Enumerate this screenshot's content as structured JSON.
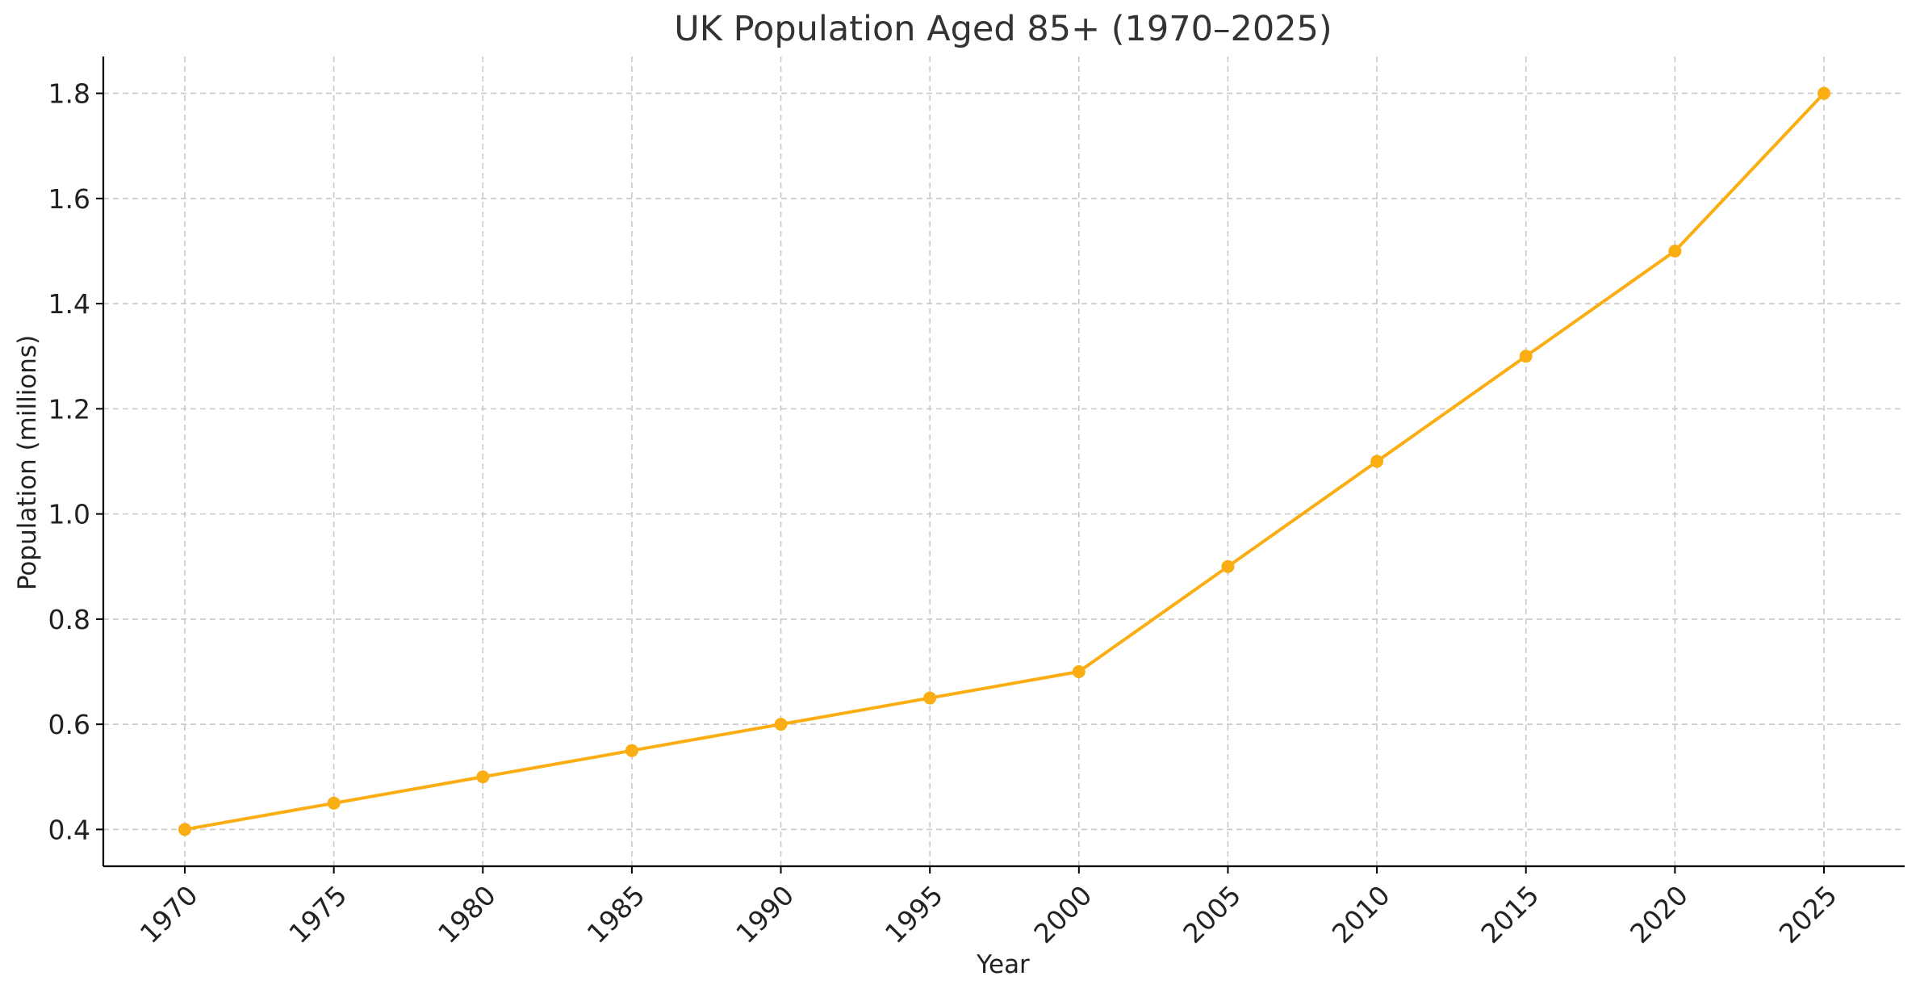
{
  "chart_data": {
    "type": "line",
    "title": "UK Population Aged 85+ (1970–2025)",
    "xlabel": "Year",
    "ylabel": "Population (millions)",
    "x": [
      1970,
      1975,
      1980,
      1985,
      1990,
      1995,
      2000,
      2005,
      2010,
      2015,
      2020,
      2025
    ],
    "x_tick_labels": [
      "1970",
      "1975",
      "1980",
      "1985",
      "1990",
      "1995",
      "2000",
      "2005",
      "2010",
      "2015",
      "2020",
      "2025"
    ],
    "y_ticks": [
      0.4,
      0.6,
      0.8,
      1.0,
      1.2,
      1.4,
      1.6,
      1.8
    ],
    "y_tick_labels": [
      "0.4",
      "0.6",
      "0.8",
      "1.0",
      "1.2",
      "1.4",
      "1.6",
      "1.8"
    ],
    "ylim": [
      0.33,
      1.87
    ],
    "grid": true,
    "series": [
      {
        "values": [
          0.4,
          0.45,
          0.5,
          0.55,
          0.6,
          0.65,
          0.7,
          0.9,
          1.1,
          1.3,
          1.5,
          1.8
        ],
        "color": "#FAAE14",
        "marker": "circle"
      }
    ]
  }
}
